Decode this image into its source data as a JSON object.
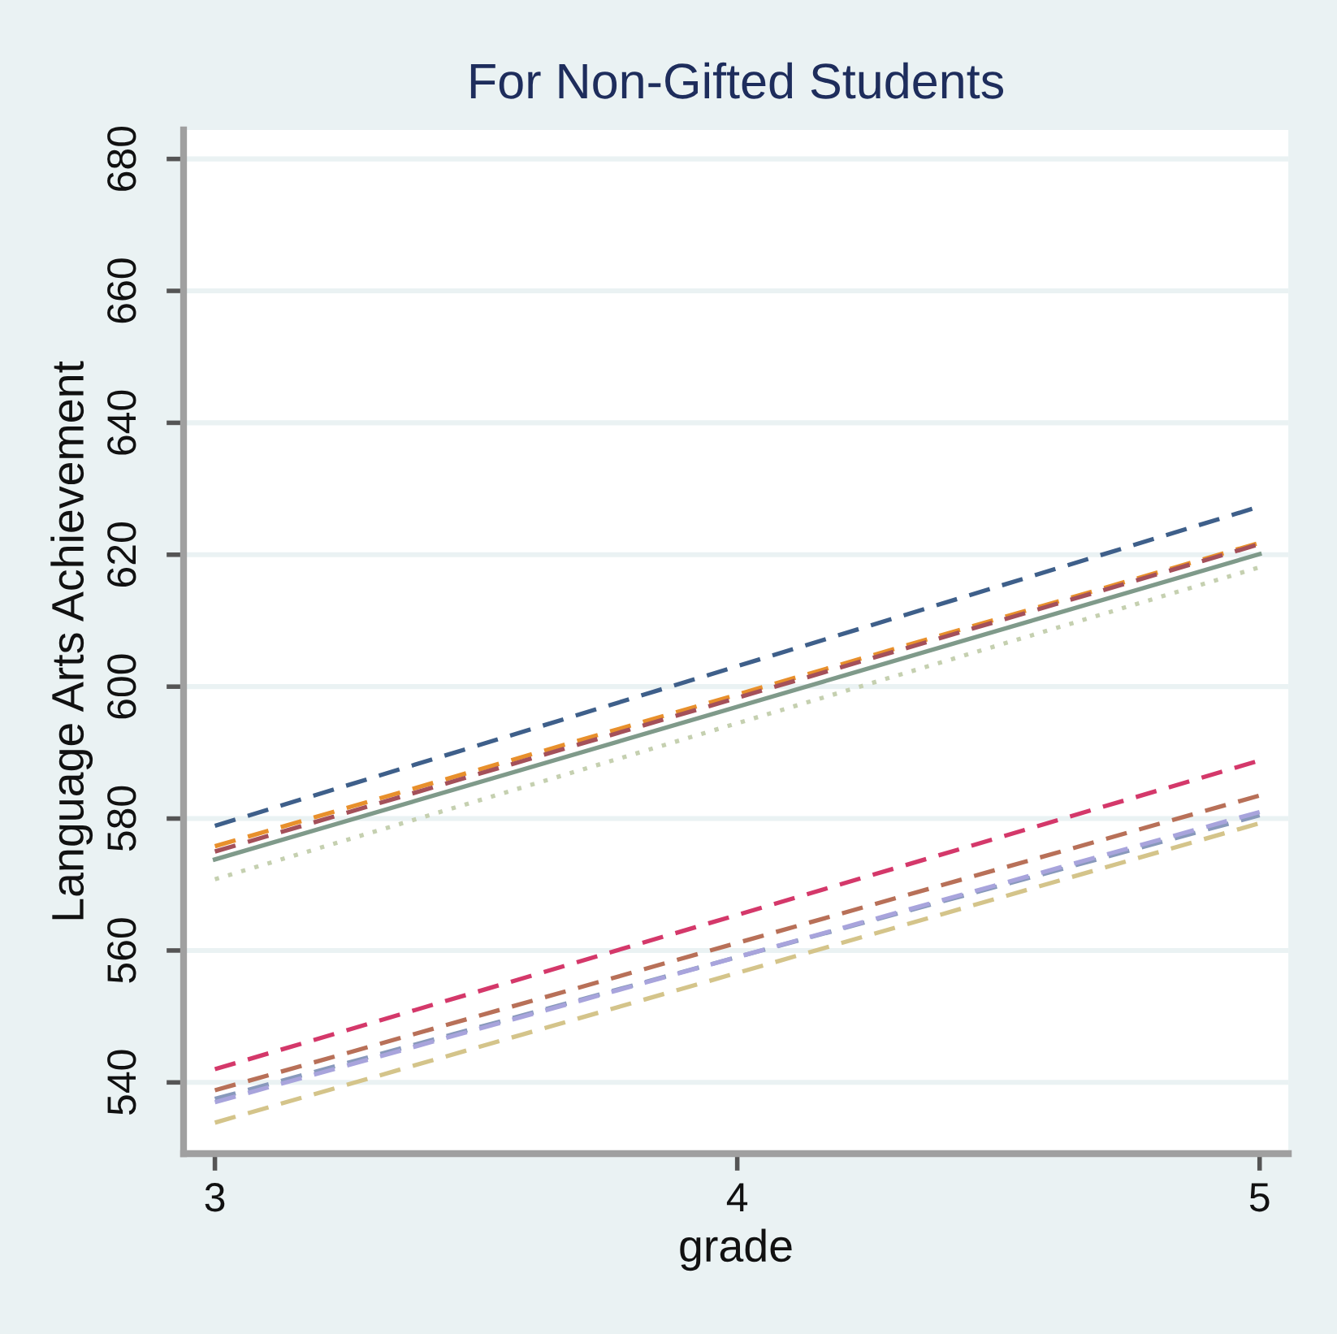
{
  "chart_data": {
    "type": "line",
    "title": "For Non-Gifted Students",
    "xlabel": "grade",
    "ylabel": "Language Arts Achievement",
    "x": [
      3,
      5
    ],
    "xlim": [
      2.94,
      5.055
    ],
    "xticks": [
      3,
      4,
      5
    ],
    "ylim": [
      529.2,
      684.4
    ],
    "yticks": [
      540,
      560,
      580,
      600,
      620,
      640,
      660,
      680
    ],
    "grid": "y",
    "series": [
      {
        "color": "#3e5f8a",
        "line_style": "dashed",
        "values": [
          578.9,
          627.3
        ]
      },
      {
        "color": "#e8902c",
        "line_style": "dashed",
        "values": [
          575.8,
          621.8
        ]
      },
      {
        "color": "#a4505a",
        "line_style": "dashed",
        "values": [
          575.0,
          621.6
        ]
      },
      {
        "color": "#7f9a8a",
        "line_style": "solid",
        "values": [
          573.8,
          620.1
        ]
      },
      {
        "color": "#c5d0b0",
        "line_style": "dotted",
        "values": [
          570.8,
          618.1
        ]
      },
      {
        "color": "#d4386a",
        "line_style": "dashed",
        "values": [
          542.0,
          588.8
        ]
      },
      {
        "color": "#b87058",
        "line_style": "dashed",
        "values": [
          538.8,
          583.5
        ]
      },
      {
        "color": "#8899bb",
        "line_style": "dashed",
        "values": [
          537.5,
          580.5
        ]
      },
      {
        "color": "#a8a4dc",
        "line_style": "dashed",
        "values": [
          537.0,
          581.0
        ]
      },
      {
        "color": "#d4c48a",
        "line_style": "dashed",
        "values": [
          533.9,
          579.3
        ]
      }
    ]
  }
}
